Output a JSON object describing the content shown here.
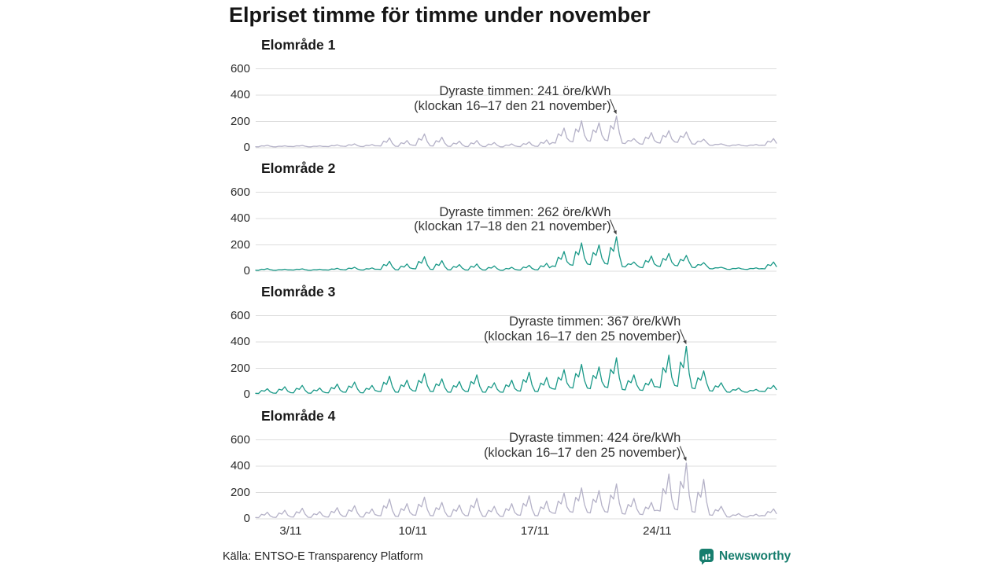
{
  "header": {
    "title": "Elpriset timme för timme under november"
  },
  "footer": {
    "source": "Källa: ENTSO-E Transparency Platform",
    "brand": "Newsworthy",
    "brand_color": "#177e6e"
  },
  "chart_data": {
    "type": "line",
    "title": "Elpriset timme för timme under november",
    "unit": "öre/kWh",
    "x_range": "1 november – 30 november, hourly",
    "points_per_day": 6,
    "x_tick_labels": [
      "3/11",
      "10/11",
      "17/11",
      "24/11"
    ],
    "x_tick_indices": [
      12,
      54,
      96,
      138
    ],
    "y_ticks": [
      0,
      200,
      400,
      600
    ],
    "ylim": [
      0,
      700
    ],
    "grid": true,
    "colors": {
      "grid": "#dcdcdc",
      "purple_line": "#b4b1c7",
      "teal_line": "#1a9988",
      "annotation_arrow": "#444444"
    },
    "subplots": [
      {
        "label": "Elområde 1",
        "color": "#b4b1c7",
        "peak": {
          "value": 241,
          "index": 124,
          "annotation_line1": "Dyraste timmen: 241 öre/kWh",
          "annotation_line2": "(klockan 16–17 den 21 november)"
        },
        "values": [
          8,
          7,
          15,
          13,
          20,
          12,
          8,
          7,
          12,
          11,
          15,
          10,
          10,
          9,
          15,
          14,
          18,
          12,
          8,
          7,
          12,
          11,
          15,
          10,
          10,
          9,
          17,
          15,
          22,
          14,
          12,
          11,
          23,
          20,
          30,
          17,
          10,
          9,
          19,
          17,
          25,
          15,
          15,
          14,
          51,
          42,
          75,
          33,
          12,
          11,
          38,
          31,
          55,
          25,
          20,
          18,
          71,
          58,
          105,
          46,
          15,
          14,
          54,
          44,
          80,
          35,
          12,
          11,
          35,
          29,
          50,
          23,
          10,
          9,
          37,
          30,
          55,
          24,
          10,
          9,
          28,
          24,
          40,
          19,
          8,
          7,
          21,
          18,
          30,
          15,
          10,
          9,
          31,
          26,
          45,
          21,
          12,
          11,
          41,
          34,
          60,
          26,
          40,
          36,
          106,
          90,
          150,
          73,
          50,
          45,
          143,
          120,
          205,
          97,
          55,
          50,
          136,
          116,
          190,
          96,
          60,
          54,
          169,
          141,
          241,
          114,
          35,
          32,
          56,
          51,
          70,
          46,
          30,
          27,
          81,
          68,
          115,
          56,
          40,
          36,
          94,
          81,
          130,
          67,
          45,
          41,
          90,
          79,
          120,
          68,
          30,
          27,
          51,
          46,
          65,
          41,
          20,
          18,
          26,
          25,
          30,
          23,
          15,
          14,
          21,
          20,
          25,
          18,
          15,
          14,
          21,
          20,
          25,
          18,
          20,
          18,
          50,
          43,
          70,
          35
        ]
      },
      {
        "label": "Elområde 2",
        "color": "#1a9988",
        "peak": {
          "value": 262,
          "index": 124,
          "annotation_line1": "Dyraste timmen: 262 öre/kWh",
          "annotation_line2": "(klockan 17–18 den 21 november)"
        },
        "values": [
          8,
          7,
          15,
          13,
          20,
          12,
          8,
          7,
          12,
          11,
          15,
          10,
          10,
          9,
          15,
          14,
          18,
          12,
          8,
          7,
          12,
          11,
          15,
          10,
          10,
          9,
          17,
          15,
          22,
          14,
          12,
          11,
          23,
          20,
          30,
          17,
          10,
          9,
          19,
          17,
          25,
          15,
          15,
          14,
          51,
          42,
          75,
          33,
          12,
          11,
          38,
          31,
          55,
          25,
          20,
          18,
          74,
          61,
          110,
          47,
          15,
          14,
          54,
          44,
          80,
          35,
          12,
          11,
          35,
          29,
          50,
          23,
          10,
          9,
          37,
          30,
          55,
          24,
          10,
          9,
          28,
          24,
          40,
          19,
          8,
          7,
          21,
          18,
          30,
          15,
          10,
          9,
          31,
          26,
          45,
          21,
          12,
          11,
          41,
          34,
          60,
          26,
          40,
          36,
          106,
          90,
          150,
          73,
          50,
          45,
          149,
          124,
          215,
          100,
          55,
          50,
          142,
          120,
          200,
          99,
          60,
          54,
          181,
          151,
          262,
          121,
          35,
          32,
          56,
          51,
          70,
          46,
          30,
          27,
          81,
          68,
          115,
          56,
          40,
          36,
          97,
          83,
          135,
          69,
          45,
          41,
          90,
          79,
          120,
          68,
          30,
          27,
          51,
          46,
          65,
          41,
          20,
          18,
          26,
          25,
          30,
          23,
          15,
          14,
          21,
          20,
          25,
          18,
          15,
          14,
          21,
          20,
          25,
          18,
          20,
          18,
          50,
          43,
          70,
          35
        ]
      },
      {
        "label": "Elområde 3",
        "color": "#1a9988",
        "peak": {
          "value": 367,
          "index": 148,
          "annotation_line1": "Dyraste timmen: 367 öre/kWh",
          "annotation_line2": "(klockan 16–17 den 25 november)"
        },
        "values": [
          10,
          9,
          31,
          26,
          45,
          21,
          12,
          11,
          41,
          34,
          60,
          26,
          15,
          14,
          48,
          40,
          70,
          32,
          12,
          11,
          35,
          29,
          50,
          23,
          15,
          14,
          54,
          44,
          80,
          35,
          20,
          18,
          65,
          54,
          95,
          43,
          15,
          14,
          48,
          40,
          70,
          32,
          25,
          23,
          94,
          77,
          140,
          60,
          20,
          18,
          74,
          61,
          110,
          47,
          30,
          27,
          108,
          89,
          160,
          69,
          25,
          23,
          82,
          68,
          120,
          54,
          20,
          18,
          68,
          56,
          100,
          44,
          25,
          23,
          100,
          81,
          150,
          63,
          20,
          18,
          62,
          52,
          90,
          41,
          20,
          18,
          74,
          61,
          110,
          47,
          30,
          27,
          114,
          93,
          170,
          72,
          25,
          23,
          88,
          72,
          130,
          57,
          45,
          41,
          132,
          110,
          190,
          89,
          55,
          50,
          160,
          134,
          230,
          108,
          50,
          45,
          146,
          122,
          210,
          98,
          60,
          54,
          192,
          159,
          280,
          126,
          40,
          36,
          106,
          90,
          150,
          73,
          35,
          32,
          86,
          73,
          120,
          61,
          60,
          54,
          204,
          168,
          300,
          132,
          70,
          63,
          248,
          204,
          367,
          159,
          50,
          45,
          128,
          109,
          180,
          89,
          30,
          27,
          66,
          57,
          90,
          48,
          20,
          18,
          38,
          34,
          50,
          29,
          20,
          18,
          32,
          29,
          40,
          26,
          25,
          23,
          52,
          45,
          70,
          39
        ]
      },
      {
        "label": "Elområde 4",
        "color": "#b4b1c7",
        "peak": {
          "value": 424,
          "index": 148,
          "annotation_line1": "Dyraste timmen: 424 öre/kWh",
          "annotation_line2": "(klockan 16–17 den 25 november)"
        },
        "values": [
          10,
          9,
          34,
          28,
          50,
          22,
          12,
          11,
          44,
          36,
          65,
          28,
          15,
          14,
          54,
          44,
          80,
          35,
          12,
          11,
          38,
          31,
          55,
          25,
          15,
          14,
          57,
          47,
          85,
          36,
          20,
          18,
          68,
          56,
          100,
          44,
          15,
          14,
          51,
          42,
          75,
          33,
          25,
          23,
          100,
          81,
          150,
          63,
          20,
          18,
          77,
          63,
          115,
          49,
          30,
          27,
          111,
          91,
          165,
          71,
          25,
          23,
          85,
          70,
          125,
          55,
          20,
          18,
          71,
          58,
          105,
          46,
          25,
          23,
          103,
          84,
          155,
          64,
          20,
          18,
          65,
          54,
          95,
          43,
          20,
          18,
          77,
          63,
          115,
          49,
          30,
          27,
          117,
          95,
          175,
          74,
          25,
          23,
          91,
          75,
          135,
          58,
          45,
          41,
          135,
          113,
          195,
          90,
          55,
          50,
          163,
          136,
          235,
          109,
          50,
          45,
          149,
          124,
          215,
          100,
          55,
          50,
          181,
          150,
          265,
          118,
          40,
          36,
          109,
          92,
          155,
          75,
          35,
          32,
          89,
          76,
          125,
          62,
          65,
          59,
          230,
          189,
          340,
          148,
          75,
          68,
          284,
          232,
          424,
          180,
          55,
          50,
          202,
          165,
          300,
          129,
          30,
          27,
          69,
          59,
          95,
          50,
          15,
          14,
          30,
          26,
          40,
          23,
          15,
          14,
          27,
          24,
          35,
          21,
          25,
          23,
          55,
          48,
          75,
          40
        ]
      }
    ]
  }
}
